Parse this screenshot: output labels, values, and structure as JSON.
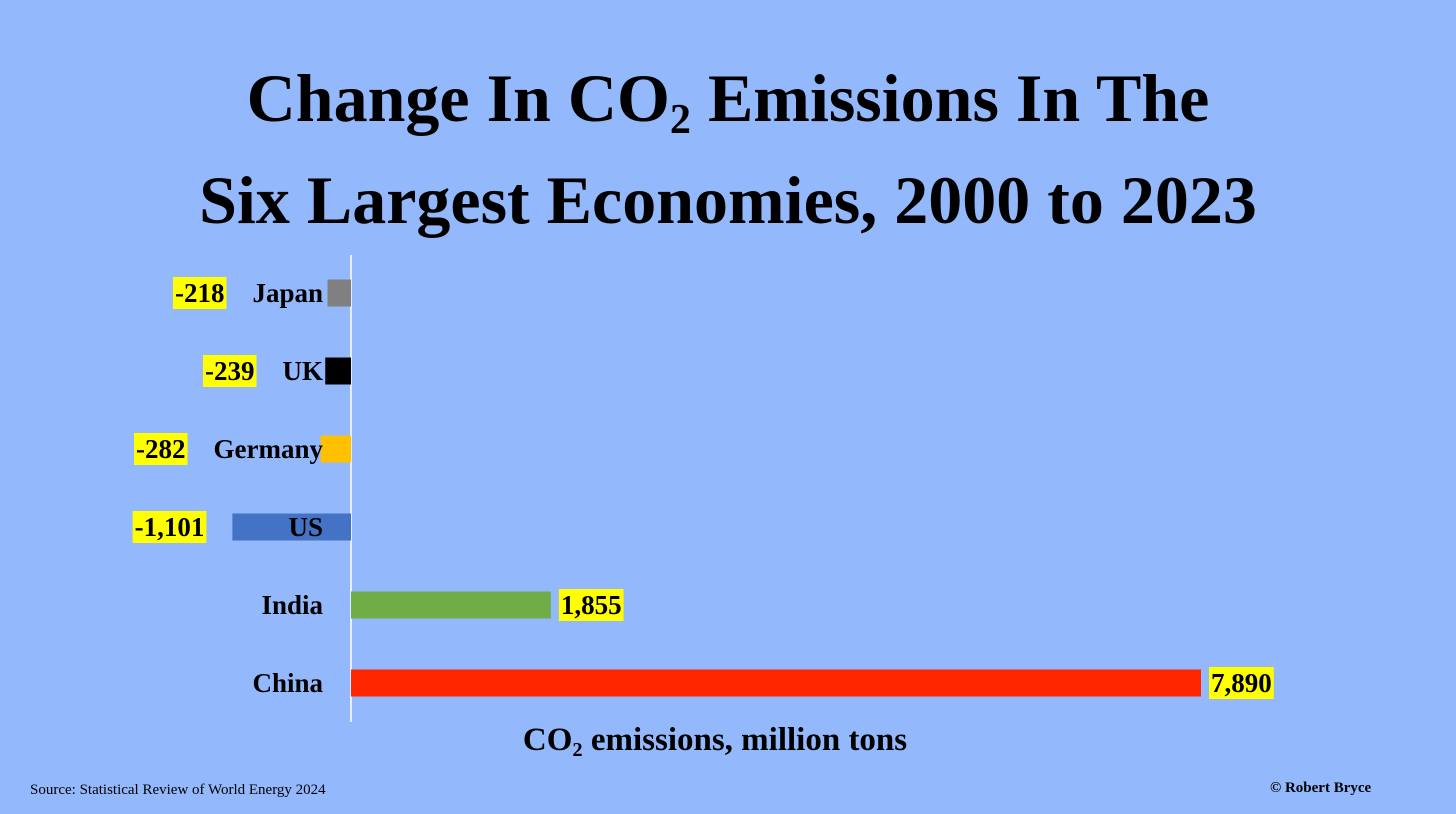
{
  "title": {
    "line1_pre": "Change In CO",
    "line1_sub": "2",
    "line1_post": " Emissions In The",
    "line2": "Six Largest Economies, 2000 to 2023"
  },
  "source": "Source: Statistical Review of World Energy  2024",
  "credit": "© Robert Bryce",
  "chart_data": {
    "type": "bar",
    "orientation": "horizontal",
    "categories": [
      "Japan",
      "UK",
      "Germany",
      "US",
      "India",
      "China"
    ],
    "values": [
      -218,
      -239,
      -282,
      -1101,
      1855,
      7890
    ],
    "value_labels": [
      "-218",
      "-239",
      "-282",
      "-1,101",
      "1,855",
      "7,890"
    ],
    "colors": [
      "#808080",
      "#000000",
      "#ffc000",
      "#4472c4",
      "#70ad47",
      "#ff2600"
    ],
    "label_highlight": "#ffff00",
    "xlabel_pre": "CO",
    "xlabel_sub": "2",
    "xlabel_post": " emissions, million tons",
    "grid": false,
    "legend": "none"
  }
}
